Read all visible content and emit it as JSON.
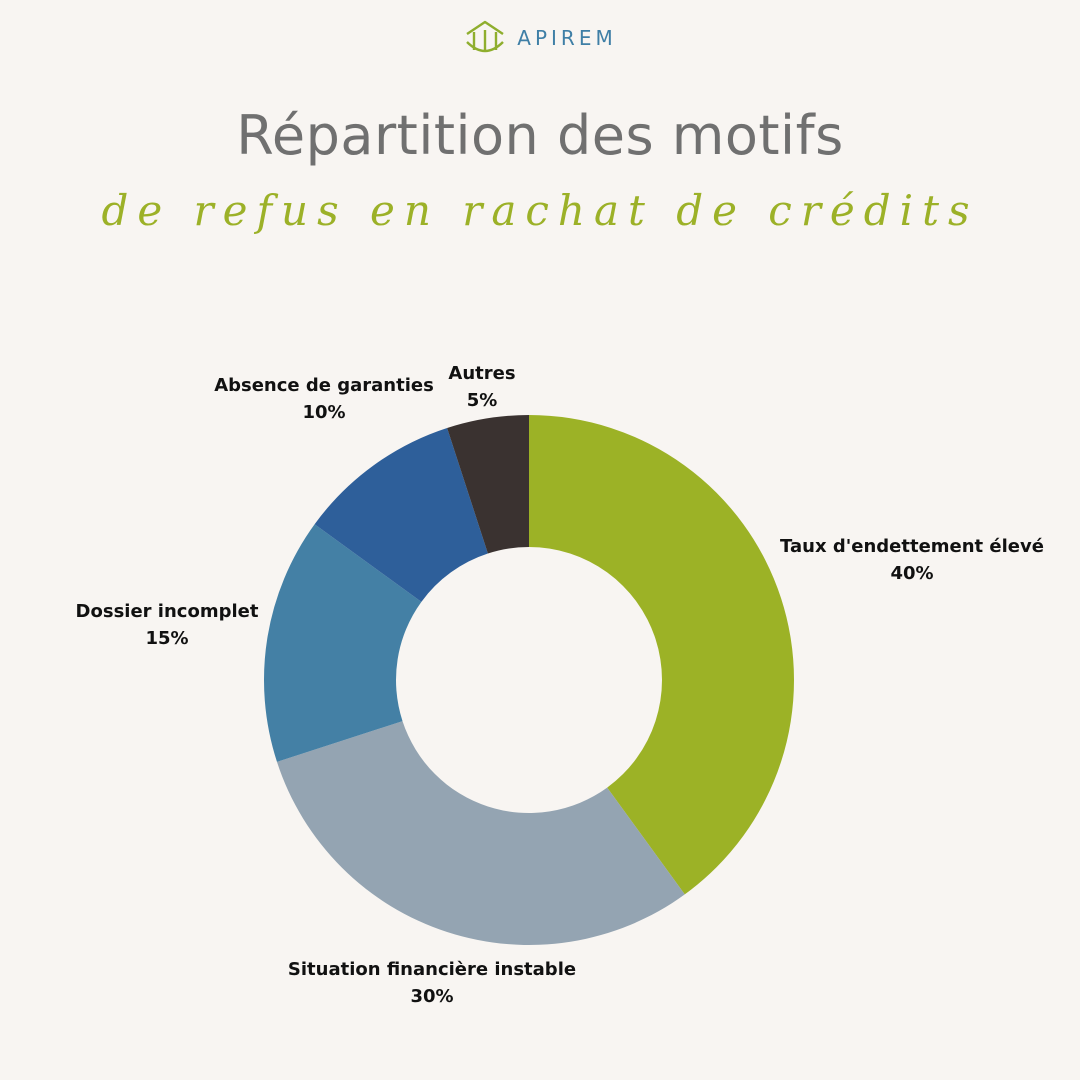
{
  "brand": {
    "name": "APIREM",
    "logo_icon": "house-outline-icon"
  },
  "header": {
    "title": "Répartition des motifs",
    "subtitle": "de refus en rachat de crédits"
  },
  "chart_data": {
    "type": "pie",
    "donut": true,
    "categories": [
      "Taux d'endettement élevé",
      "Situation financière instable",
      "Dossier incomplet",
      "Absence de garanties",
      "Autres"
    ],
    "values": [
      40,
      30,
      15,
      10,
      5
    ],
    "value_labels": [
      "40%",
      "30%",
      "15%",
      "10%",
      "5%"
    ],
    "colors": [
      "#9cb226",
      "#94a4b2",
      "#4480a5",
      "#2e5f9a",
      "#3a3230"
    ],
    "legend": "none"
  }
}
